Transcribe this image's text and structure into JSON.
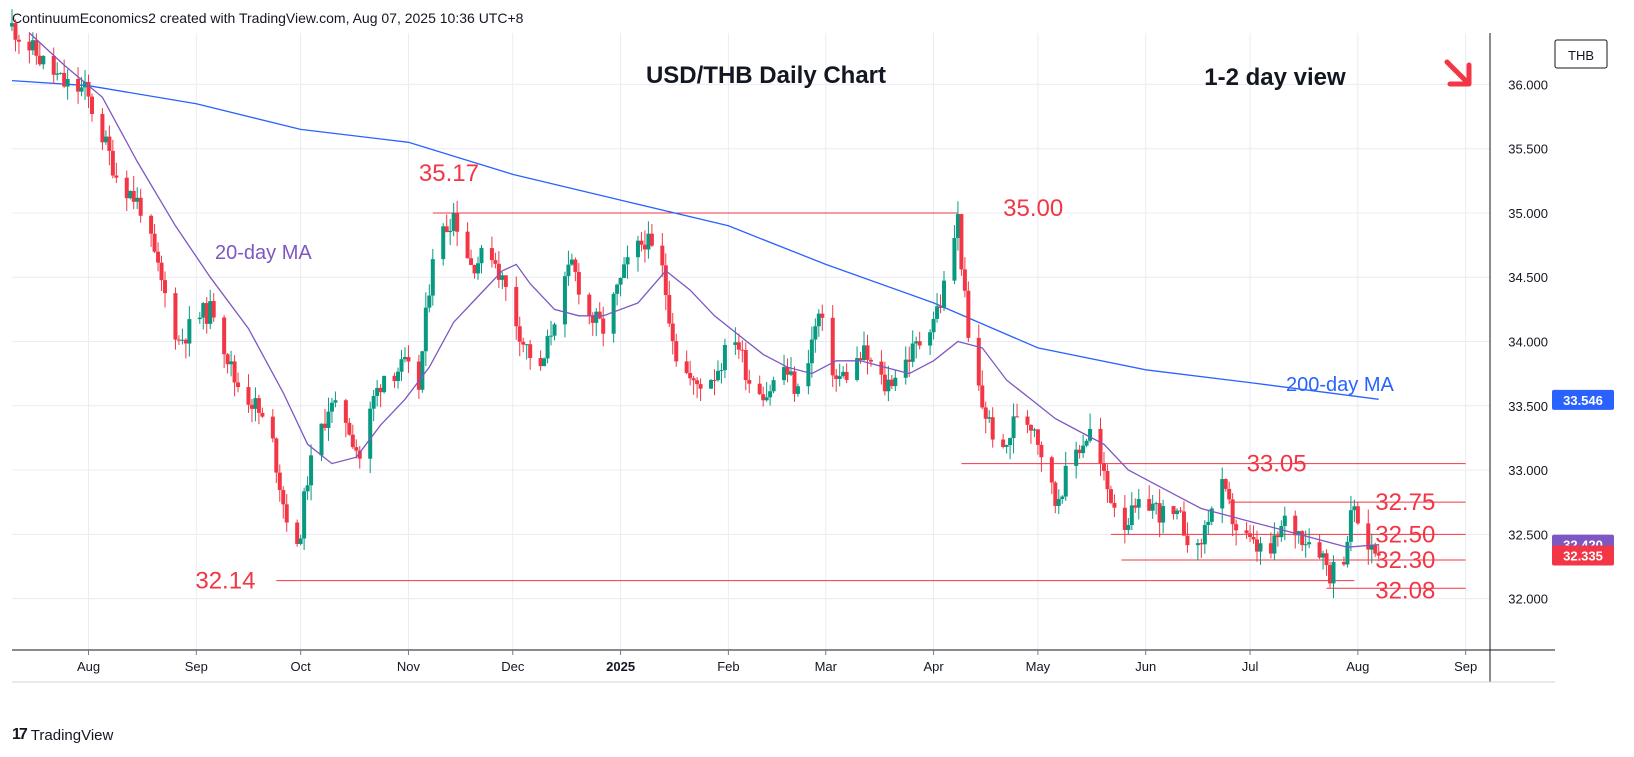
{
  "header": {
    "attribution": "ContinuumEconomics2 created with TradingView.com, Aug 07, 2025 10:36 UTC+8"
  },
  "footer": {
    "brand": "TradingView",
    "logo_mark": "17"
  },
  "colors": {
    "up": "#089981",
    "down": "#f23645",
    "ma20": "#7e57c2",
    "ma200": "#2962ff",
    "level_text": "#f23645",
    "level_line": "#f23645",
    "arrow": "#f23645",
    "text": "#131722"
  },
  "chart_data": {
    "type": "candlestick",
    "title": "USD/THB Daily Chart",
    "view_note": "1-2 day view",
    "view_icon": "down-right-arrow-icon",
    "currency_label": "THB",
    "ylim": [
      31.6,
      36.4
    ],
    "y_ticks": [
      "36.000",
      "35.500",
      "35.000",
      "34.500",
      "34.000",
      "33.500",
      "33.000",
      "32.500",
      "32.000"
    ],
    "x_ticks": [
      "Aug",
      "Sep",
      "Oct",
      "Nov",
      "Dec",
      "2025",
      "Feb",
      "Mar",
      "Apr",
      "May",
      "Jun",
      "Jul",
      "Aug",
      "Sep"
    ],
    "price_labels": [
      {
        "name": "ma200_value",
        "value": 33.546,
        "text": "33.546"
      },
      {
        "name": "ma20_value",
        "value": 32.42,
        "text": "32.420"
      },
      {
        "name": "last_price",
        "value": 32.335,
        "text": "32.335"
      }
    ],
    "series_labels": {
      "ma20": "20-day MA",
      "ma200": "200-day MA"
    },
    "levels": [
      {
        "value": 35.17,
        "text": "35.17"
      },
      {
        "value": 35.0,
        "text": "35.00"
      },
      {
        "value": 33.05,
        "text": "33.05"
      },
      {
        "value": 32.75,
        "text": "32.75"
      },
      {
        "value": 32.5,
        "text": "32.50"
      },
      {
        "value": 32.3,
        "text": "32.30"
      },
      {
        "value": 32.14,
        "text": "32.14"
      },
      {
        "value": 32.08,
        "text": "32.08"
      }
    ],
    "close_path": [
      [
        "2024-07-10",
        36.45
      ],
      [
        "2024-07-18",
        36.2
      ],
      [
        "2024-07-25",
        36.0
      ],
      [
        "2024-07-31",
        35.95
      ],
      [
        "2024-08-05",
        35.6
      ],
      [
        "2024-08-09",
        35.3
      ],
      [
        "2024-08-16",
        35.05
      ],
      [
        "2024-08-22",
        34.45
      ],
      [
        "2024-08-27",
        34.0
      ],
      [
        "2024-09-02",
        34.2
      ],
      [
        "2024-09-06",
        34.25
      ],
      [
        "2024-09-12",
        33.7
      ],
      [
        "2024-09-18",
        33.5
      ],
      [
        "2024-09-23",
        33.2
      ],
      [
        "2024-09-26",
        32.75
      ],
      [
        "2024-09-30",
        32.35
      ],
      [
        "2024-10-03",
        32.95
      ],
      [
        "2024-10-09",
        33.5
      ],
      [
        "2024-10-14",
        33.4
      ],
      [
        "2024-10-18",
        33.1
      ],
      [
        "2024-10-22",
        33.55
      ],
      [
        "2024-10-25",
        33.75
      ],
      [
        "2024-10-31",
        33.8
      ],
      [
        "2024-11-04",
        33.65
      ],
      [
        "2024-11-08",
        34.7
      ],
      [
        "2024-11-14",
        35.0
      ],
      [
        "2024-11-19",
        34.6
      ],
      [
        "2024-11-25",
        34.7
      ],
      [
        "2024-11-29",
        34.4
      ],
      [
        "2024-12-04",
        34.0
      ],
      [
        "2024-12-09",
        33.75
      ],
      [
        "2024-12-13",
        34.2
      ],
      [
        "2024-12-18",
        34.6
      ],
      [
        "2024-12-23",
        34.2
      ],
      [
        "2024-12-27",
        34.1
      ],
      [
        "2025-01-03",
        34.6
      ],
      [
        "2025-01-08",
        34.8
      ],
      [
        "2025-01-13",
        34.55
      ],
      [
        "2025-01-17",
        33.9
      ],
      [
        "2025-01-22",
        33.65
      ],
      [
        "2025-01-28",
        33.75
      ],
      [
        "2025-02-03",
        34.05
      ],
      [
        "2025-02-07",
        33.7
      ],
      [
        "2025-02-12",
        33.6
      ],
      [
        "2025-02-17",
        33.8
      ],
      [
        "2025-02-21",
        33.6
      ],
      [
        "2025-02-27",
        34.2
      ],
      [
        "2025-03-04",
        33.7
      ],
      [
        "2025-03-07",
        33.75
      ],
      [
        "2025-03-12",
        33.9
      ],
      [
        "2025-03-18",
        33.65
      ],
      [
        "2025-03-24",
        33.85
      ],
      [
        "2025-03-28",
        34.0
      ],
      [
        "2025-04-03",
        34.3
      ],
      [
        "2025-04-08",
        34.95
      ],
      [
        "2025-04-11",
        34.0
      ],
      [
        "2025-04-15",
        33.5
      ],
      [
        "2025-04-21",
        33.1
      ],
      [
        "2025-04-25",
        33.45
      ],
      [
        "2025-04-30",
        33.35
      ],
      [
        "2025-05-06",
        32.75
      ],
      [
        "2025-05-12",
        33.15
      ],
      [
        "2025-05-16",
        33.3
      ],
      [
        "2025-05-21",
        32.85
      ],
      [
        "2025-05-26",
        32.6
      ],
      [
        "2025-06-02",
        32.75
      ],
      [
        "2025-06-06",
        32.65
      ],
      [
        "2025-06-11",
        32.6
      ],
      [
        "2025-06-16",
        32.35
      ],
      [
        "2025-06-19",
        32.65
      ],
      [
        "2025-06-23",
        32.85
      ],
      [
        "2025-06-27",
        32.55
      ],
      [
        "2025-07-02",
        32.4
      ],
      [
        "2025-07-07",
        32.35
      ],
      [
        "2025-07-11",
        32.6
      ],
      [
        "2025-07-16",
        32.5
      ],
      [
        "2025-07-21",
        32.4
      ],
      [
        "2025-07-24",
        32.2
      ],
      [
        "2025-07-28",
        32.35
      ],
      [
        "2025-07-31",
        32.75
      ],
      [
        "2025-08-01",
        32.5
      ],
      [
        "2025-08-05",
        32.4
      ],
      [
        "2025-08-07",
        32.335
      ]
    ],
    "ma20": [
      [
        "2024-07-15",
        36.4
      ],
      [
        "2024-07-25",
        36.15
      ],
      [
        "2024-08-05",
        35.9
      ],
      [
        "2024-08-15",
        35.4
      ],
      [
        "2024-08-26",
        34.9
      ],
      [
        "2024-09-05",
        34.5
      ],
      [
        "2024-09-16",
        34.1
      ],
      [
        "2024-09-26",
        33.6
      ],
      [
        "2024-10-03",
        33.2
      ],
      [
        "2024-10-10",
        33.05
      ],
      [
        "2024-10-17",
        33.1
      ],
      [
        "2024-10-24",
        33.35
      ],
      [
        "2024-10-31",
        33.55
      ],
      [
        "2024-11-07",
        33.8
      ],
      [
        "2024-11-14",
        34.15
      ],
      [
        "2024-11-21",
        34.35
      ],
      [
        "2024-11-28",
        34.55
      ],
      [
        "2024-12-02",
        34.6
      ],
      [
        "2024-12-06",
        34.45
      ],
      [
        "2024-12-13",
        34.25
      ],
      [
        "2024-12-20",
        34.2
      ],
      [
        "2024-12-27",
        34.2
      ],
      [
        "2025-01-06",
        34.3
      ],
      [
        "2025-01-14",
        34.55
      ],
      [
        "2025-01-21",
        34.4
      ],
      [
        "2025-01-28",
        34.2
      ],
      [
        "2025-02-04",
        34.05
      ],
      [
        "2025-02-11",
        33.9
      ],
      [
        "2025-02-18",
        33.8
      ],
      [
        "2025-02-25",
        33.75
      ],
      [
        "2025-03-04",
        33.85
      ],
      [
        "2025-03-11",
        33.85
      ],
      [
        "2025-03-18",
        33.8
      ],
      [
        "2025-03-25",
        33.75
      ],
      [
        "2025-04-01",
        33.85
      ],
      [
        "2025-04-08",
        34.0
      ],
      [
        "2025-04-15",
        33.95
      ],
      [
        "2025-04-22",
        33.7
      ],
      [
        "2025-04-29",
        33.55
      ],
      [
        "2025-05-06",
        33.4
      ],
      [
        "2025-05-13",
        33.3
      ],
      [
        "2025-05-20",
        33.2
      ],
      [
        "2025-05-27",
        33.0
      ],
      [
        "2025-06-03",
        32.9
      ],
      [
        "2025-06-10",
        32.8
      ],
      [
        "2025-06-17",
        32.7
      ],
      [
        "2025-06-24",
        32.65
      ],
      [
        "2025-07-01",
        32.6
      ],
      [
        "2025-07-08",
        32.55
      ],
      [
        "2025-07-15",
        32.5
      ],
      [
        "2025-07-22",
        32.45
      ],
      [
        "2025-07-29",
        32.4
      ],
      [
        "2025-08-07",
        32.42
      ]
    ],
    "ma200": [
      [
        "2024-07-10",
        36.03
      ],
      [
        "2024-08-01",
        35.99
      ],
      [
        "2024-09-01",
        35.85
      ],
      [
        "2024-10-01",
        35.65
      ],
      [
        "2024-11-01",
        35.55
      ],
      [
        "2024-12-01",
        35.3
      ],
      [
        "2025-01-01",
        35.1
      ],
      [
        "2025-02-01",
        34.9
      ],
      [
        "2025-03-01",
        34.6
      ],
      [
        "2025-04-01",
        34.3
      ],
      [
        "2025-05-01",
        33.95
      ],
      [
        "2025-06-01",
        33.78
      ],
      [
        "2025-07-01",
        33.68
      ],
      [
        "2025-08-07",
        33.55
      ]
    ]
  }
}
